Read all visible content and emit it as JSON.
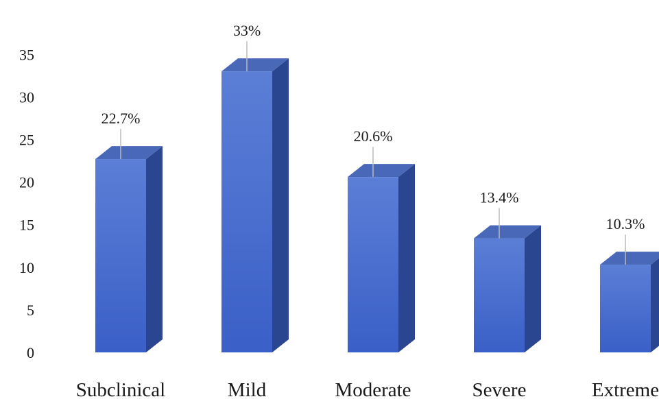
{
  "chart_data": {
    "type": "bar",
    "style": "3d-column",
    "categories": [
      "Subclinical",
      "Mild",
      "Moderate",
      "Severe",
      "Extreme"
    ],
    "values": [
      22.7,
      33,
      20.6,
      13.4,
      10.3
    ],
    "data_labels": [
      "22.7%",
      "33%",
      "20.6%",
      "13.4%",
      "10.3%"
    ],
    "title": "",
    "xlabel": "",
    "ylabel": "",
    "ylim": [
      0,
      35
    ],
    "yticks": [
      0,
      5,
      10,
      15,
      20,
      25,
      30,
      35
    ],
    "grid": false,
    "legend": "none",
    "colors": {
      "bar_top": "#5b7fd6",
      "bar_bottom": "#3a5fc7",
      "bar_side": "#2a4690",
      "bar_cap": "#4a68b8",
      "leader_line": "#bbbbbb"
    }
  }
}
